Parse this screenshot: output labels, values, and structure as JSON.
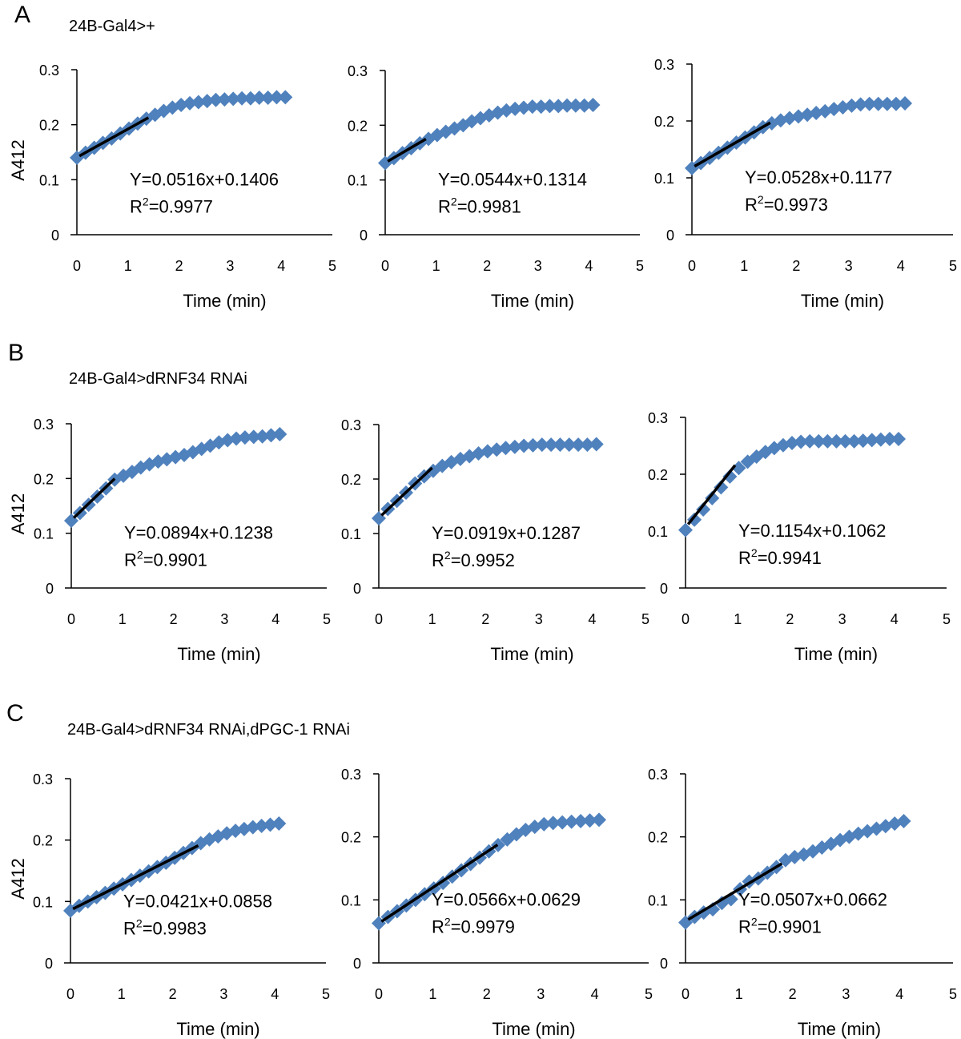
{
  "figure": {
    "rows": [
      {
        "letter": "A",
        "title": "24B-Gal4>+"
      },
      {
        "letter": "B",
        "title": "24B-Gal4>dRNF34 RNAi"
      },
      {
        "letter": "C",
        "title": "24B-Gal4>dRNF34 RNAi,dPGC-1 RNAi"
      }
    ]
  },
  "chart_data": [
    {
      "type": "scatter",
      "row": "A",
      "col": 1,
      "xlabel": "Time (min)",
      "ylabel": "A412",
      "xlim": [
        0,
        5
      ],
      "ylim": [
        0,
        0.3
      ],
      "xticks": [
        "0",
        "1",
        "2",
        "3",
        "4",
        "5"
      ],
      "yticks": [
        "0",
        "0.1",
        "0.2",
        "0.3"
      ],
      "marker_color": "#4f81bd",
      "fit_color": "#000000",
      "x": [
        0,
        0.17,
        0.34,
        0.51,
        0.68,
        0.85,
        1.02,
        1.19,
        1.36,
        1.53,
        1.7,
        1.87,
        2.04,
        2.21,
        2.38,
        2.55,
        2.72,
        2.89,
        3.06,
        3.23,
        3.4,
        3.57,
        3.74,
        3.91,
        4.08
      ],
      "y": [
        0.14,
        0.149,
        0.158,
        0.167,
        0.175,
        0.184,
        0.193,
        0.202,
        0.211,
        0.218,
        0.225,
        0.231,
        0.236,
        0.239,
        0.241,
        0.243,
        0.245,
        0.246,
        0.247,
        0.248,
        0.248,
        0.249,
        0.249,
        0.25,
        0.25
      ],
      "fit": {
        "slope": 0.0516,
        "intercept": 0.1406,
        "x_range": [
          0,
          1.4
        ]
      },
      "equation": "Y=0.0516x+0.1406",
      "r2_prefix": "R",
      "r2_sup": "2",
      "r2_value": "=0.9977"
    },
    {
      "type": "scatter",
      "row": "A",
      "col": 2,
      "xlabel": "Time (min)",
      "ylabel": "",
      "xlim": [
        0,
        5
      ],
      "ylim": [
        0,
        0.3
      ],
      "xticks": [
        "0",
        "1",
        "2",
        "3",
        "4",
        "5"
      ],
      "yticks": [
        "0",
        "0.1",
        "0.2",
        "0.3"
      ],
      "marker_color": "#4f81bd",
      "fit_color": "#000000",
      "x": [
        0,
        0.17,
        0.34,
        0.51,
        0.68,
        0.85,
        1.02,
        1.19,
        1.36,
        1.53,
        1.7,
        1.87,
        2.04,
        2.21,
        2.38,
        2.55,
        2.72,
        2.89,
        3.06,
        3.23,
        3.4,
        3.57,
        3.74,
        3.91,
        4.08
      ],
      "y": [
        0.131,
        0.14,
        0.149,
        0.158,
        0.167,
        0.175,
        0.182,
        0.188,
        0.194,
        0.2,
        0.207,
        0.213,
        0.218,
        0.223,
        0.227,
        0.23,
        0.232,
        0.234,
        0.234,
        0.235,
        0.235,
        0.236,
        0.236,
        0.236,
        0.237
      ],
      "fit": {
        "slope": 0.0544,
        "intercept": 0.1314,
        "x_range": [
          0,
          0.8
        ]
      },
      "equation": "Y=0.0544x+0.1314",
      "r2_prefix": "R",
      "r2_sup": "2",
      "r2_value": "=0.9981"
    },
    {
      "type": "scatter",
      "row": "A",
      "col": 3,
      "xlabel": "Time (min)",
      "ylabel": "",
      "xlim": [
        0,
        5
      ],
      "ylim": [
        0,
        0.3
      ],
      "xticks": [
        "0",
        "1",
        "2",
        "3",
        "4",
        "5"
      ],
      "yticks": [
        "0",
        "0.1",
        "0.2",
        "0.3"
      ],
      "marker_color": "#4f81bd",
      "fit_color": "#000000",
      "x": [
        0,
        0.17,
        0.34,
        0.51,
        0.68,
        0.85,
        1.02,
        1.19,
        1.36,
        1.53,
        1.7,
        1.87,
        2.04,
        2.21,
        2.38,
        2.55,
        2.72,
        2.89,
        3.06,
        3.23,
        3.4,
        3.57,
        3.74,
        3.91,
        4.08
      ],
      "y": [
        0.117,
        0.126,
        0.135,
        0.144,
        0.153,
        0.162,
        0.171,
        0.18,
        0.189,
        0.196,
        0.201,
        0.205,
        0.208,
        0.211,
        0.214,
        0.217,
        0.221,
        0.224,
        0.227,
        0.229,
        0.23,
        0.23,
        0.23,
        0.23,
        0.231
      ],
      "fit": {
        "slope": 0.0528,
        "intercept": 0.1177,
        "x_range": [
          0,
          1.5
        ]
      },
      "equation": "Y=0.0528x+0.1177",
      "r2_prefix": "R",
      "r2_sup": "2",
      "r2_value": "=0.9973"
    },
    {
      "type": "scatter",
      "row": "B",
      "col": 1,
      "xlabel": "Time (min)",
      "ylabel": "A412",
      "xlim": [
        0,
        5
      ],
      "ylim": [
        0,
        0.3
      ],
      "xticks": [
        "0",
        "1",
        "2",
        "3",
        "4",
        "5"
      ],
      "yticks": [
        "0",
        "0.1",
        "0.2",
        "0.3"
      ],
      "marker_color": "#4f81bd",
      "fit_color": "#000000",
      "x": [
        0,
        0.17,
        0.34,
        0.51,
        0.68,
        0.85,
        1.02,
        1.19,
        1.36,
        1.53,
        1.7,
        1.87,
        2.04,
        2.21,
        2.38,
        2.55,
        2.72,
        2.89,
        3.06,
        3.23,
        3.4,
        3.57,
        3.74,
        3.91,
        4.08
      ],
      "y": [
        0.123,
        0.137,
        0.152,
        0.167,
        0.182,
        0.198,
        0.205,
        0.212,
        0.22,
        0.226,
        0.231,
        0.235,
        0.239,
        0.243,
        0.248,
        0.254,
        0.26,
        0.266,
        0.27,
        0.273,
        0.275,
        0.276,
        0.277,
        0.279,
        0.281
      ],
      "fit": {
        "slope": 0.0894,
        "intercept": 0.1238,
        "x_range": [
          0,
          0.85
        ]
      },
      "equation": "Y=0.0894x+0.1238",
      "r2_prefix": "R",
      "r2_sup": "2",
      "r2_value": "=0.9901"
    },
    {
      "type": "scatter",
      "row": "B",
      "col": 2,
      "xlabel": "Time (min)",
      "ylabel": "",
      "xlim": [
        0,
        5
      ],
      "ylim": [
        0,
        0.3
      ],
      "xticks": [
        "0",
        "1",
        "2",
        "3",
        "4",
        "5"
      ],
      "yticks": [
        "0",
        "0.1",
        "0.2",
        "0.3"
      ],
      "marker_color": "#4f81bd",
      "fit_color": "#000000",
      "x": [
        0,
        0.17,
        0.34,
        0.51,
        0.68,
        0.85,
        1.02,
        1.19,
        1.36,
        1.53,
        1.7,
        1.87,
        2.04,
        2.21,
        2.38,
        2.55,
        2.72,
        2.89,
        3.06,
        3.23,
        3.4,
        3.57,
        3.74,
        3.91,
        4.08
      ],
      "y": [
        0.128,
        0.145,
        0.16,
        0.175,
        0.192,
        0.205,
        0.215,
        0.224,
        0.231,
        0.237,
        0.242,
        0.247,
        0.251,
        0.254,
        0.257,
        0.259,
        0.261,
        0.262,
        0.263,
        0.263,
        0.263,
        0.263,
        0.263,
        0.263,
        0.264
      ],
      "fit": {
        "slope": 0.0919,
        "intercept": 0.1287,
        "x_range": [
          0,
          1.0
        ]
      },
      "equation": "Y=0.0919x+0.1287",
      "r2_prefix": "R",
      "r2_sup": "2",
      "r2_value": "=0.9952"
    },
    {
      "type": "scatter",
      "row": "B",
      "col": 3,
      "xlabel": "Time (min)",
      "ylabel": "",
      "xlim": [
        0,
        5
      ],
      "ylim": [
        0,
        0.3
      ],
      "xticks": [
        "0",
        "1",
        "2",
        "3",
        "4",
        "5"
      ],
      "yticks": [
        "0",
        "0.1",
        "0.2",
        "0.3"
      ],
      "marker_color": "#4f81bd",
      "fit_color": "#000000",
      "x": [
        0,
        0.17,
        0.34,
        0.51,
        0.68,
        0.85,
        1.02,
        1.19,
        1.36,
        1.53,
        1.7,
        1.87,
        2.04,
        2.21,
        2.38,
        2.55,
        2.72,
        2.89,
        3.06,
        3.23,
        3.4,
        3.57,
        3.74,
        3.91,
        4.08
      ],
      "y": [
        0.102,
        0.12,
        0.138,
        0.158,
        0.177,
        0.196,
        0.211,
        0.222,
        0.231,
        0.239,
        0.246,
        0.251,
        0.255,
        0.257,
        0.258,
        0.258,
        0.258,
        0.258,
        0.258,
        0.258,
        0.259,
        0.26,
        0.261,
        0.262,
        0.262
      ],
      "fit": {
        "slope": 0.1154,
        "intercept": 0.1062,
        "x_range": [
          0,
          0.95
        ]
      },
      "equation": "Y=0.1154x+0.1062",
      "r2_prefix": "R",
      "r2_sup": "2",
      "r2_value": "=0.9941"
    },
    {
      "type": "scatter",
      "row": "C",
      "col": 1,
      "xlabel": "Time (min)",
      "ylabel": "A412",
      "xlim": [
        0,
        5
      ],
      "ylim": [
        0,
        0.3
      ],
      "xticks": [
        "0",
        "1",
        "2",
        "3",
        "4",
        "5"
      ],
      "yticks": [
        "0",
        "0.1",
        "0.2",
        "0.3"
      ],
      "marker_color": "#4f81bd",
      "fit_color": "#000000",
      "x": [
        0,
        0.17,
        0.34,
        0.51,
        0.68,
        0.85,
        1.02,
        1.19,
        1.36,
        1.53,
        1.7,
        1.87,
        2.04,
        2.21,
        2.38,
        2.55,
        2.72,
        2.89,
        3.06,
        3.23,
        3.4,
        3.57,
        3.74,
        3.91,
        4.08
      ],
      "y": [
        0.085,
        0.093,
        0.1,
        0.107,
        0.114,
        0.121,
        0.128,
        0.135,
        0.142,
        0.149,
        0.156,
        0.163,
        0.171,
        0.179,
        0.187,
        0.195,
        0.201,
        0.206,
        0.211,
        0.215,
        0.218,
        0.221,
        0.223,
        0.225,
        0.227
      ],
      "fit": {
        "slope": 0.0421,
        "intercept": 0.0858,
        "x_range": [
          0,
          2.5
        ]
      },
      "equation": "Y=0.0421x+0.0858",
      "r2_prefix": "R",
      "r2_sup": "2",
      "r2_value": "=0.9983"
    },
    {
      "type": "scatter",
      "row": "C",
      "col": 2,
      "xlabel": "Time (min)",
      "ylabel": "",
      "xlim": [
        0,
        5
      ],
      "ylim": [
        0,
        0.3
      ],
      "xticks": [
        "0",
        "1",
        "2",
        "3",
        "4",
        "5"
      ],
      "yticks": [
        "0",
        "0.1",
        "0.2",
        "0.3"
      ],
      "marker_color": "#4f81bd",
      "fit_color": "#000000",
      "x": [
        0,
        0.17,
        0.34,
        0.51,
        0.68,
        0.85,
        1.02,
        1.19,
        1.36,
        1.53,
        1.7,
        1.87,
        2.04,
        2.21,
        2.38,
        2.55,
        2.72,
        2.89,
        3.06,
        3.23,
        3.4,
        3.57,
        3.74,
        3.91,
        4.08
      ],
      "y": [
        0.063,
        0.073,
        0.082,
        0.091,
        0.1,
        0.109,
        0.118,
        0.127,
        0.137,
        0.147,
        0.157,
        0.167,
        0.177,
        0.187,
        0.196,
        0.204,
        0.211,
        0.216,
        0.22,
        0.222,
        0.223,
        0.224,
        0.225,
        0.226,
        0.227
      ],
      "fit": {
        "slope": 0.0566,
        "intercept": 0.0629,
        "x_range": [
          0,
          2.2
        ]
      },
      "equation": "Y=0.0566x+0.0629",
      "r2_prefix": "R",
      "r2_sup": "2",
      "r2_value": "=0.9979"
    },
    {
      "type": "scatter",
      "row": "C",
      "col": 3,
      "xlabel": "Time (min)",
      "ylabel": "",
      "xlim": [
        0,
        5
      ],
      "ylim": [
        0,
        0.3
      ],
      "xticks": [
        "0",
        "1",
        "2",
        "3",
        "4",
        "5"
      ],
      "yticks": [
        "0",
        "0.1",
        "0.2",
        "0.3"
      ],
      "marker_color": "#4f81bd",
      "fit_color": "#000000",
      "x": [
        0,
        0.17,
        0.34,
        0.51,
        0.68,
        0.85,
        1.02,
        1.19,
        1.36,
        1.53,
        1.7,
        1.87,
        2.04,
        2.21,
        2.38,
        2.55,
        2.72,
        2.89,
        3.06,
        3.23,
        3.4,
        3.57,
        3.74,
        3.91,
        4.08
      ],
      "y": [
        0.064,
        0.073,
        0.08,
        0.085,
        0.095,
        0.101,
        0.117,
        0.129,
        0.134,
        0.143,
        0.152,
        0.163,
        0.168,
        0.172,
        0.177,
        0.183,
        0.189,
        0.195,
        0.2,
        0.205,
        0.209,
        0.213,
        0.217,
        0.221,
        0.225
      ],
      "fit": {
        "slope": 0.0507,
        "intercept": 0.0662,
        "x_range": [
          0,
          1.8
        ]
      },
      "equation": "Y=0.0507x+0.0662",
      "r2_prefix": "R",
      "r2_sup": "2",
      "r2_value": "=0.9901"
    }
  ]
}
